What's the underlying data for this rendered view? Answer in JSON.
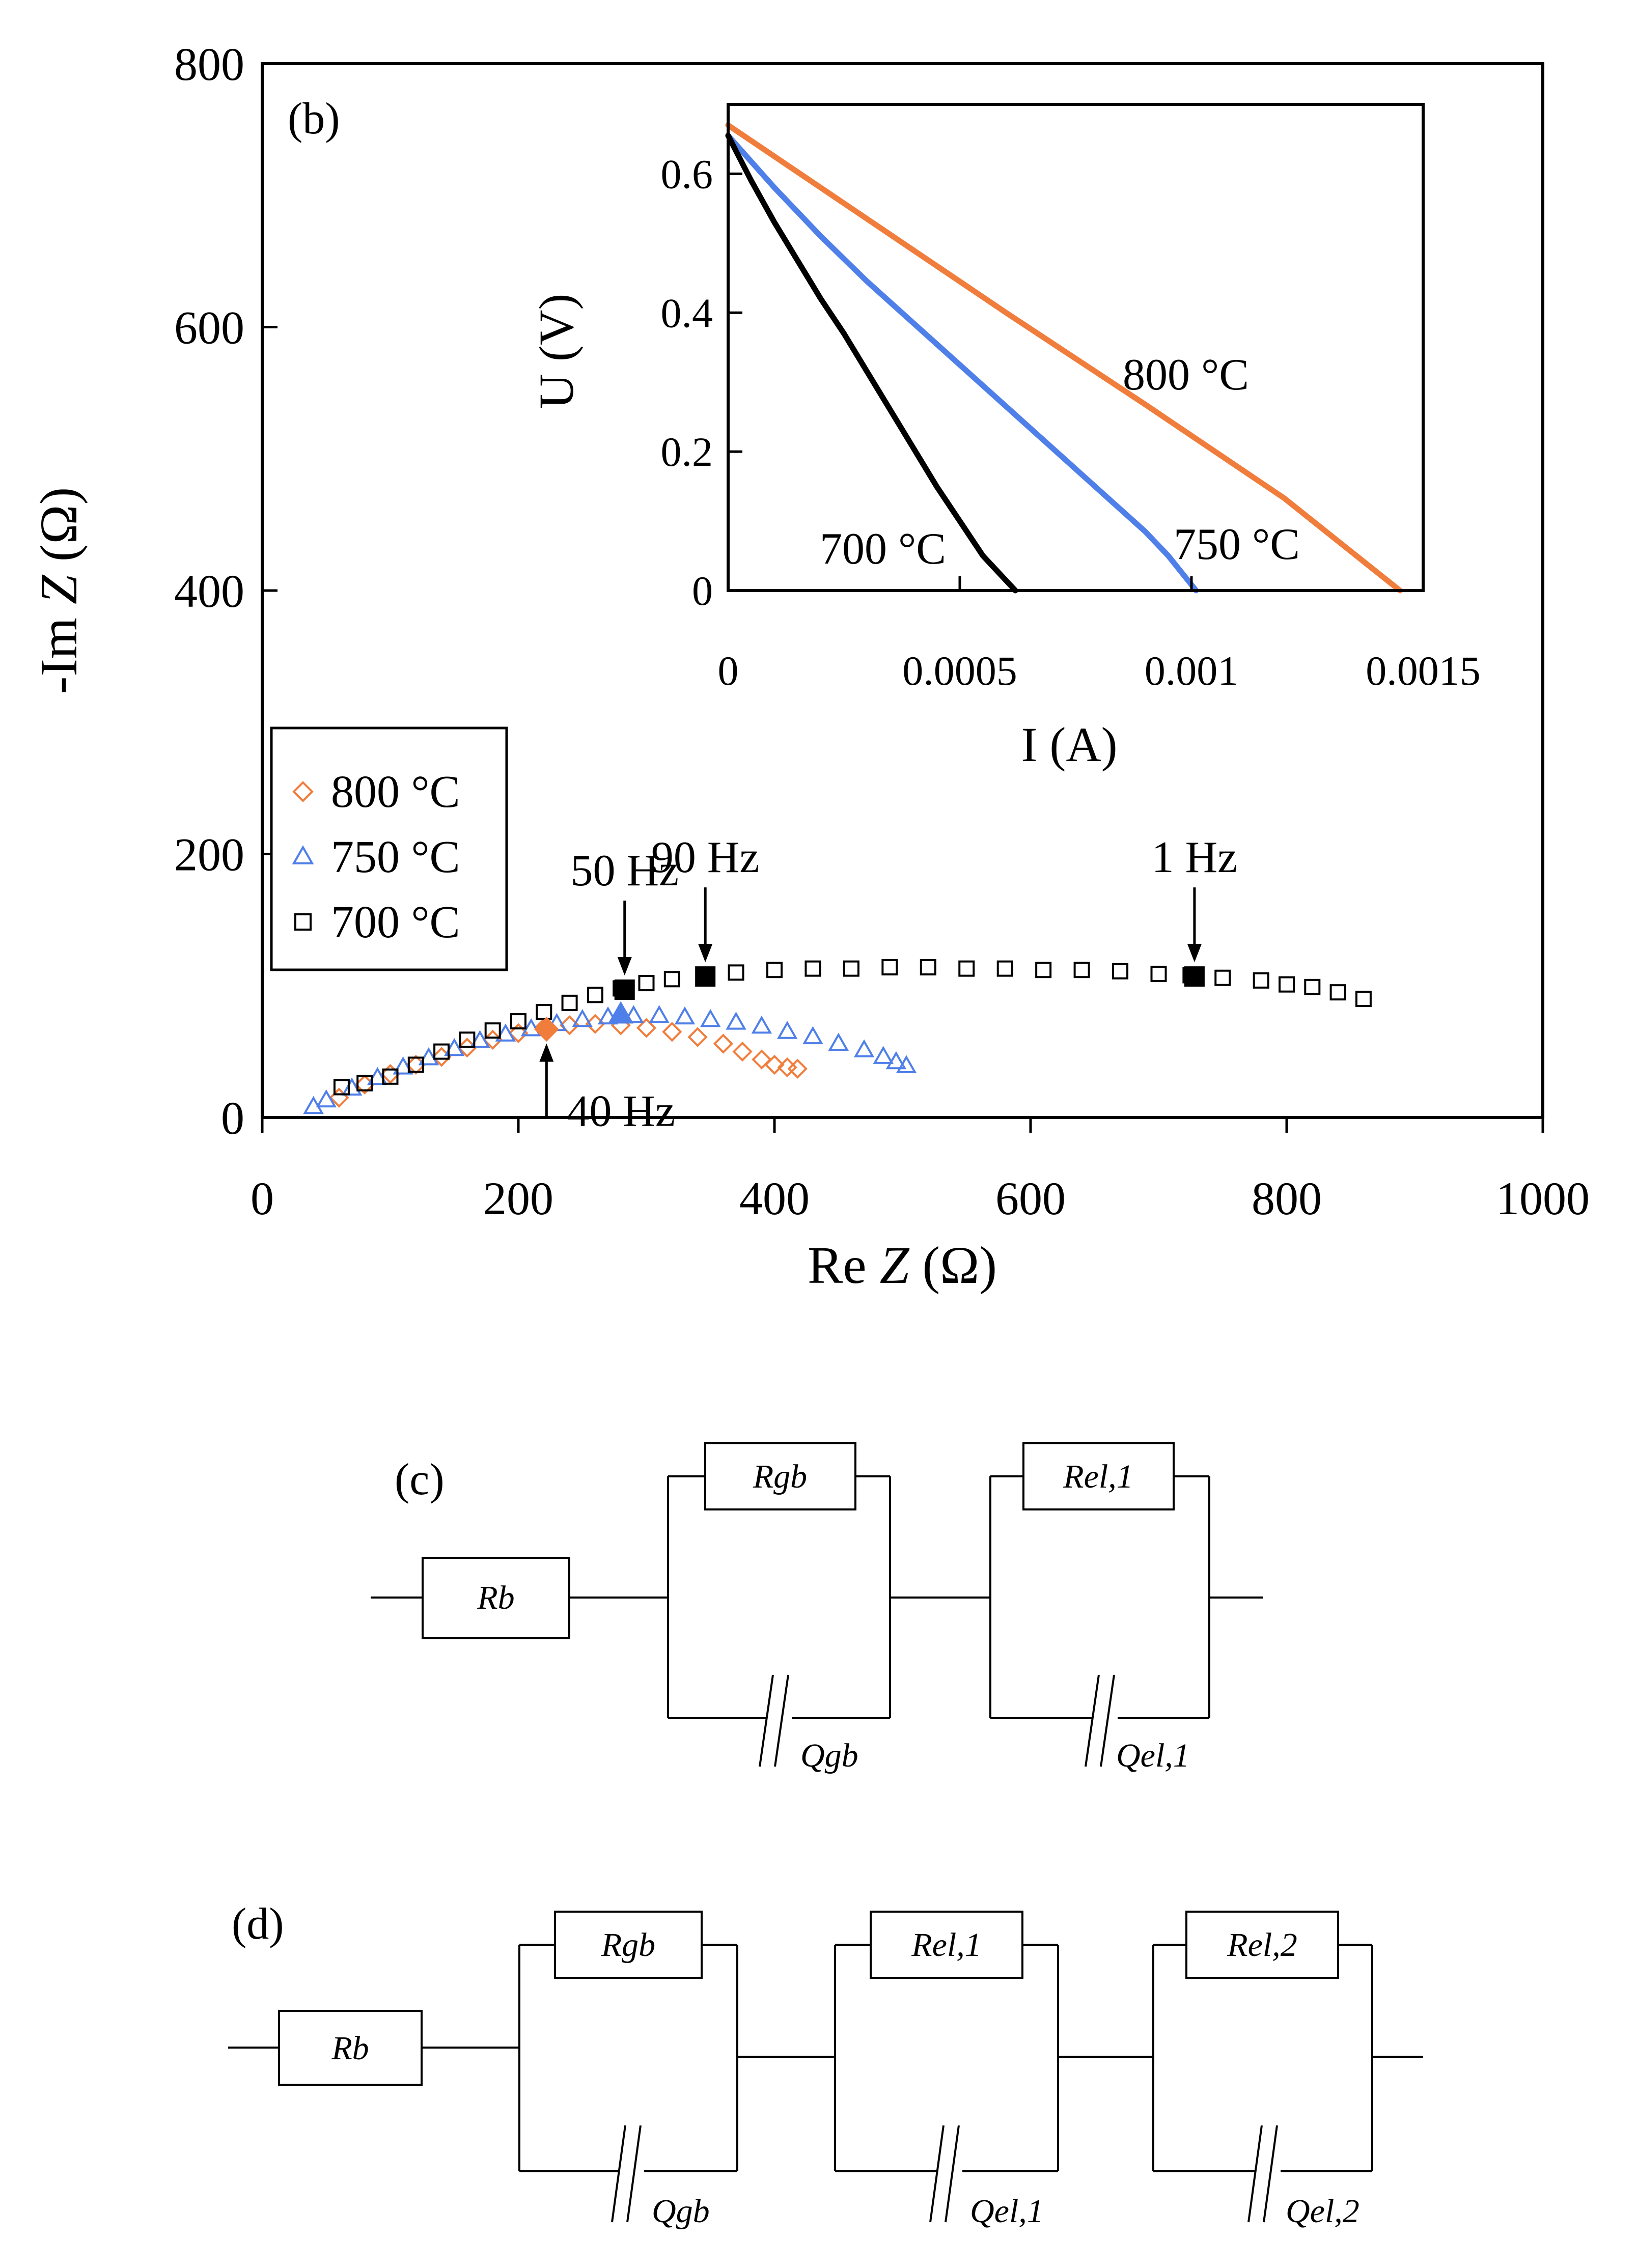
{
  "chart_data": [
    {
      "panel": "(b)",
      "type": "scatter",
      "xlabel": "Re Z (Ω)",
      "xlabel_parts": [
        "Re ",
        "Z",
        " (Ω)"
      ],
      "ylabel": "-Im Z (Ω)",
      "ylabel_parts": [
        "-Im ",
        "Z",
        " (Ω)"
      ],
      "xlim": [
        0,
        1000
      ],
      "ylim": [
        0,
        800
      ],
      "xticks": [
        "0",
        "200",
        "400",
        "600",
        "800",
        "1000"
      ],
      "yticks": [
        "0",
        "200",
        "400",
        "600",
        "800"
      ],
      "grid": false,
      "legend_position": "left",
      "series": [
        {
          "name": "800 °C",
          "marker": "diamond",
          "color": "#f07d3c",
          "points": [
            [
              60,
              15
            ],
            [
              80,
              25
            ],
            [
              100,
              33
            ],
            [
              120,
              40
            ],
            [
              140,
              46
            ],
            [
              160,
              53
            ],
            [
              180,
              59
            ],
            [
              200,
              64
            ],
            [
              220,
              68
            ],
            [
              240,
              70
            ],
            [
              260,
              71
            ],
            [
              280,
              70
            ],
            [
              300,
              68
            ],
            [
              320,
              65
            ],
            [
              340,
              61
            ],
            [
              360,
              56
            ],
            [
              375,
              50
            ],
            [
              390,
              44
            ],
            [
              400,
              40
            ],
            [
              410,
              38
            ],
            [
              418,
              37
            ]
          ]
        },
        {
          "name": "750 °C",
          "marker": "triangle",
          "color": "#4f7fe8",
          "points": [
            [
              40,
              8
            ],
            [
              50,
              13
            ],
            [
              70,
              22
            ],
            [
              90,
              30
            ],
            [
              110,
              38
            ],
            [
              130,
              45
            ],
            [
              150,
              52
            ],
            [
              170,
              58
            ],
            [
              190,
              63
            ],
            [
              210,
              67
            ],
            [
              230,
              71
            ],
            [
              250,
              74
            ],
            [
              270,
              76
            ],
            [
              290,
              77
            ],
            [
              310,
              77
            ],
            [
              330,
              76
            ],
            [
              350,
              74
            ],
            [
              370,
              72
            ],
            [
              390,
              69
            ],
            [
              410,
              65
            ],
            [
              430,
              61
            ],
            [
              450,
              56
            ],
            [
              470,
              51
            ],
            [
              485,
              46
            ],
            [
              495,
              42
            ],
            [
              503,
              39
            ]
          ]
        },
        {
          "name": "700 °C",
          "marker": "square",
          "color": "#000000",
          "points": [
            [
              62,
              23
            ],
            [
              80,
              26
            ],
            [
              100,
              31
            ],
            [
              120,
              40
            ],
            [
              140,
              50
            ],
            [
              160,
              59
            ],
            [
              180,
              66
            ],
            [
              200,
              73
            ],
            [
              220,
              80
            ],
            [
              240,
              87
            ],
            [
              260,
              93
            ],
            [
              280,
              98
            ],
            [
              300,
              102
            ],
            [
              320,
              105
            ],
            [
              345,
              108
            ],
            [
              370,
              110
            ],
            [
              400,
              112
            ],
            [
              430,
              113
            ],
            [
              460,
              113
            ],
            [
              490,
              114
            ],
            [
              520,
              114
            ],
            [
              550,
              113
            ],
            [
              580,
              113
            ],
            [
              610,
              112
            ],
            [
              640,
              112
            ],
            [
              670,
              111
            ],
            [
              700,
              109
            ],
            [
              725,
              108
            ],
            [
              750,
              106
            ],
            [
              780,
              104
            ],
            [
              800,
              101
            ],
            [
              820,
              99
            ],
            [
              840,
              95
            ],
            [
              860,
              90
            ]
          ]
        }
      ],
      "highlighted_points": [
        {
          "series": "800 °C",
          "x": 222,
          "y": 67
        },
        {
          "series": "750 °C",
          "x": 280,
          "y": 78
        },
        {
          "series": "700 °C",
          "x": 283,
          "y": 97
        },
        {
          "series": "700 °C",
          "x": 346,
          "y": 107
        },
        {
          "series": "700 °C",
          "x": 728,
          "y": 107
        }
      ],
      "annotations": [
        {
          "text": "90 Hz",
          "x": 346,
          "y": 107,
          "arrow": "down"
        },
        {
          "text": "50 Hz",
          "x": 283,
          "y": 97,
          "arrow": "down"
        },
        {
          "text": "1 Hz",
          "x": 728,
          "y": 107,
          "arrow": "down"
        },
        {
          "text": "40 Hz",
          "x": 222,
          "y": 67,
          "arrow": "up"
        }
      ]
    },
    {
      "panel": "inset",
      "type": "line",
      "xlabel": "I (A)",
      "ylabel": "U (V)",
      "xlim": [
        0,
        0.0015
      ],
      "ylim": [
        0,
        0.7
      ],
      "xticks": [
        "0",
        "0.0005",
        "0.001",
        "0.0015"
      ],
      "yticks": [
        "0",
        "0.2",
        "0.4",
        "0.6"
      ],
      "grid": false,
      "series": [
        {
          "name": "800 °C",
          "color": "#f07d3c",
          "points": [
            [
              0,
              0.67
            ],
            [
              0.0003,
              0.535
            ],
            [
              0.0006,
              0.4
            ],
            [
              0.0009,
              0.268
            ],
            [
              0.0012,
              0.133
            ],
            [
              0.00145,
              0.0
            ]
          ]
        },
        {
          "name": "750 °C",
          "color": "#4f7fe8",
          "points": [
            [
              0,
              0.655
            ],
            [
              0.0001,
              0.58
            ],
            [
              0.0002,
              0.51
            ],
            [
              0.0003,
              0.445
            ],
            [
              0.0004,
              0.385
            ],
            [
              0.0005,
              0.325
            ],
            [
              0.0006,
              0.265
            ],
            [
              0.0007,
              0.205
            ],
            [
              0.0008,
              0.145
            ],
            [
              0.0009,
              0.085
            ],
            [
              0.00095,
              0.05
            ],
            [
              0.00101,
              0.0
            ]
          ]
        },
        {
          "name": "700 °C",
          "color": "#000000",
          "points": [
            [
              0,
              0.655
            ],
            [
              5e-05,
              0.59
            ],
            [
              0.0001,
              0.53
            ],
            [
              0.00015,
              0.475
            ],
            [
              0.0002,
              0.42
            ],
            [
              0.00025,
              0.37
            ],
            [
              0.0003,
              0.315
            ],
            [
              0.00035,
              0.26
            ],
            [
              0.0004,
              0.205
            ],
            [
              0.00045,
              0.15
            ],
            [
              0.0005,
              0.1
            ],
            [
              0.00055,
              0.05
            ],
            [
              0.00062,
              0.0
            ]
          ]
        }
      ],
      "curve_labels": [
        "800 °C",
        "750 °C",
        "700 °C"
      ]
    }
  ],
  "panel_labels": {
    "b": "(b)",
    "c": "(c)",
    "d": "(d)"
  },
  "circuit_c": {
    "Rb": "Rb",
    "Rgb": "Rgb",
    "Rel1": "Rel,1",
    "Qgb": "Qgb",
    "Qel1": "Qel,1"
  },
  "circuit_d": {
    "Rb": "Rb",
    "Rgb": "Rgb",
    "Rel1": "Rel,1",
    "Rel2": "Rel,2",
    "Qgb": "Qgb",
    "Qel1": "Qel,1",
    "Qel2": "Qel,2"
  }
}
